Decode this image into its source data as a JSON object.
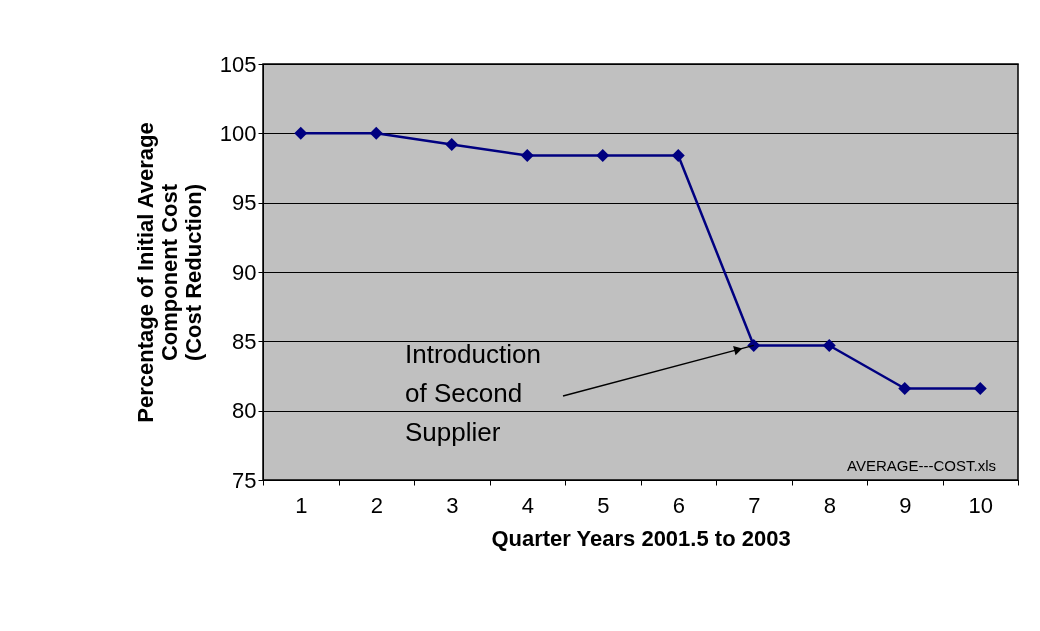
{
  "chart_data": {
    "type": "line",
    "xlabel": "Quarter Years 2001.5 to 2003",
    "ylabel": "Percentage of Initial Average Component Cost (Cost Reduction)",
    "categories": [
      "1",
      "2",
      "3",
      "4",
      "5",
      "6",
      "7",
      "8",
      "9",
      "10"
    ],
    "series": [
      {
        "color": "#000080",
        "values": [
          100,
          100,
          99.2,
          98.4,
          98.4,
          98.4,
          84.7,
          84.7,
          81.6,
          81.6
        ]
      }
    ],
    "ylim": [
      75,
      105
    ],
    "yticks": [
      75,
      80,
      85,
      90,
      95,
      100,
      105
    ],
    "grid": "y",
    "marker": "diamond",
    "line_style": "solid",
    "annotations": [
      {
        "text": "Introduction of Second Supplier",
        "x": "7",
        "y": 84.7
      },
      "AVERAGE---COST.xls"
    ]
  }
}
